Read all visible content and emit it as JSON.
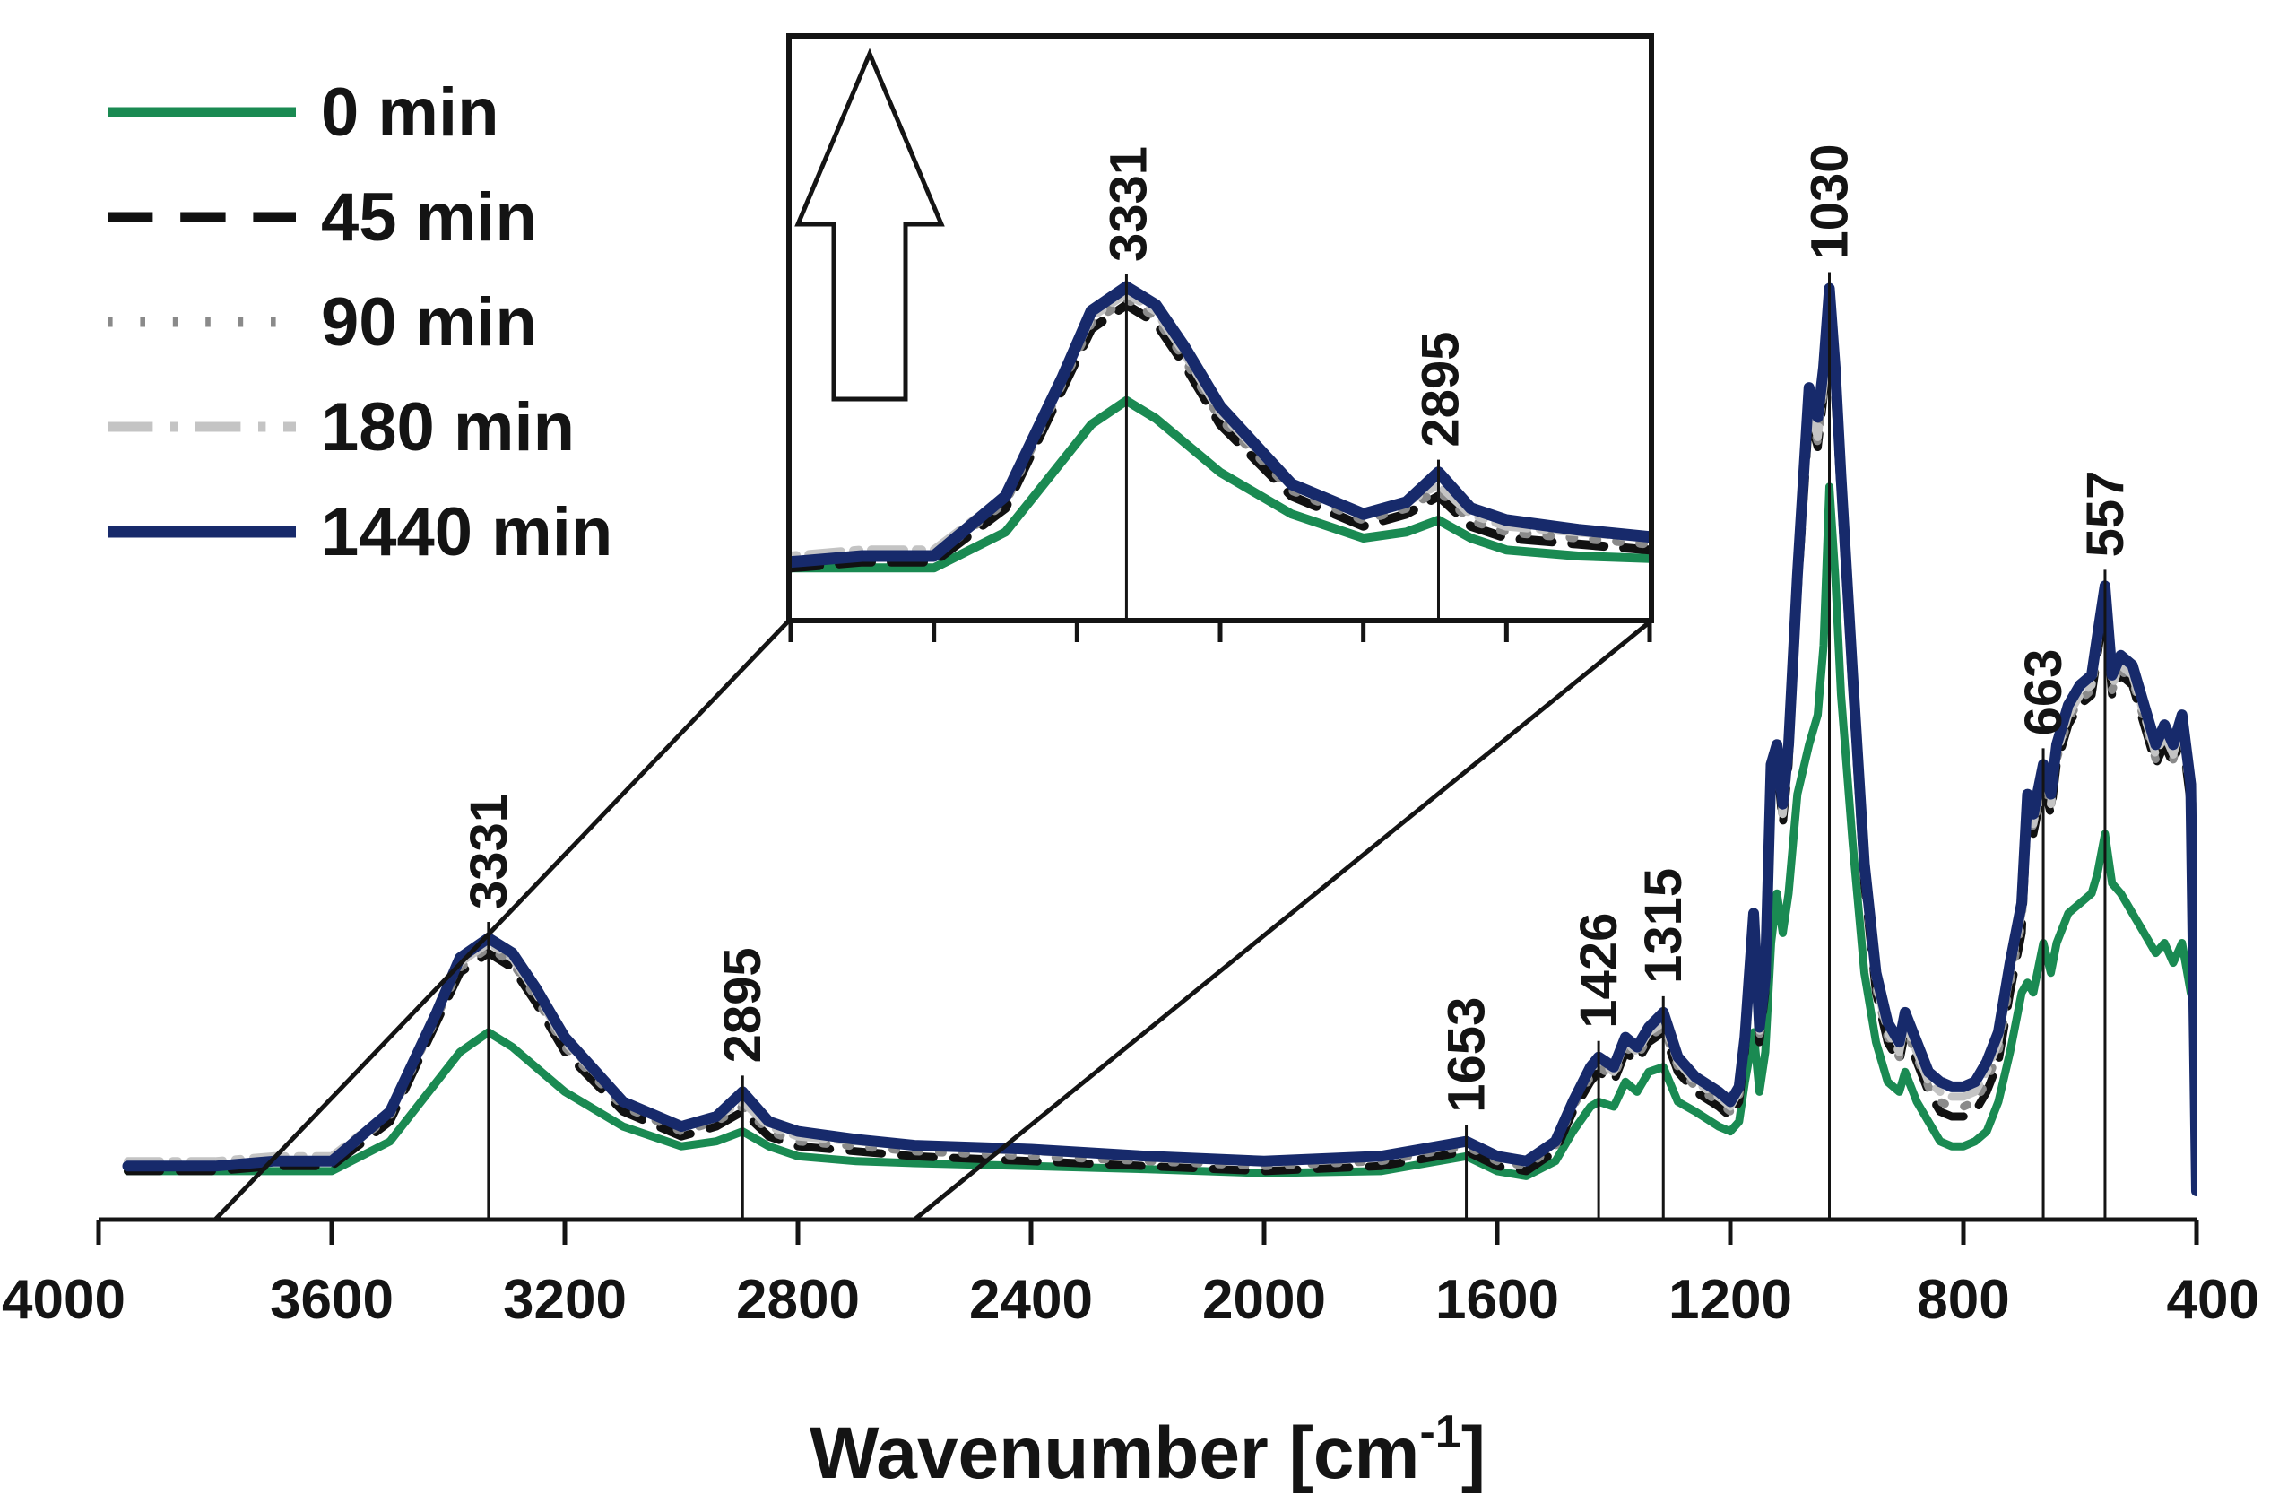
{
  "chart_data": {
    "type": "line",
    "title": "",
    "xlabel": "Wavenumber [cm",
    "xlabel_superscript": "-1",
    "xlabel_suffix": "]",
    "ylabel": "",
    "xlim": [
      4000,
      400
    ],
    "x_reversed": true,
    "y_axis_shown": false,
    "ylim": [
      0,
      1
    ],
    "xticks": [
      4000,
      3600,
      3200,
      2800,
      2400,
      2000,
      1600,
      1200,
      800,
      400
    ],
    "xtick_labels": [
      "4000",
      "3600",
      "3200",
      "2800",
      "2400",
      "2000",
      "1600",
      "1200",
      "800",
      "400"
    ],
    "grid": false,
    "legend_position": "top-left",
    "series": [
      {
        "name": "0 min",
        "label": "0 min",
        "color": "#1a8a52",
        "dash": "solid",
        "x": [
          3950,
          3800,
          3700,
          3600,
          3500,
          3420,
          3380,
          3331,
          3290,
          3250,
          3200,
          3100,
          3000,
          2940,
          2895,
          2850,
          2800,
          2700,
          2600,
          2400,
          2200,
          2000,
          1800,
          1653,
          1600,
          1550,
          1500,
          1470,
          1440,
          1426,
          1400,
          1380,
          1360,
          1340,
          1315,
          1290,
          1260,
          1220,
          1200,
          1185,
          1175,
          1160,
          1150,
          1140,
          1130,
          1120,
          1110,
          1100,
          1085,
          1065,
          1050,
          1040,
          1030,
          1020,
          1010,
          990,
          970,
          950,
          930,
          910,
          900,
          880,
          860,
          840,
          820,
          800,
          780,
          760,
          740,
          720,
          700,
          690,
          680,
          663,
          650,
          640,
          620,
          600,
          580,
          570,
          557,
          545,
          530,
          510,
          490,
          470,
          455,
          440,
          425,
          410,
          400
        ],
        "y": [
          0.02,
          0.02,
          0.02,
          0.02,
          0.05,
          0.11,
          0.14,
          0.16,
          0.145,
          0.125,
          0.1,
          0.065,
          0.045,
          0.05,
          0.06,
          0.045,
          0.035,
          0.03,
          0.028,
          0.025,
          0.022,
          0.018,
          0.02,
          0.035,
          0.02,
          0.015,
          0.03,
          0.06,
          0.085,
          0.09,
          0.085,
          0.11,
          0.1,
          0.12,
          0.125,
          0.09,
          0.08,
          0.065,
          0.06,
          0.07,
          0.11,
          0.16,
          0.1,
          0.14,
          0.25,
          0.3,
          0.26,
          0.3,
          0.4,
          0.45,
          0.48,
          0.55,
          0.71,
          0.62,
          0.5,
          0.35,
          0.22,
          0.15,
          0.11,
          0.1,
          0.12,
          0.09,
          0.07,
          0.05,
          0.045,
          0.045,
          0.05,
          0.06,
          0.09,
          0.14,
          0.2,
          0.21,
          0.2,
          0.25,
          0.22,
          0.25,
          0.28,
          0.29,
          0.3,
          0.32,
          0.36,
          0.31,
          0.3,
          0.28,
          0.26,
          0.24,
          0.25,
          0.23,
          0.25,
          0.2,
          0.18
        ]
      },
      {
        "name": "45 min",
        "label": "45 min",
        "color": "#111111",
        "dash": "dashed",
        "x": [
          3950,
          3800,
          3700,
          3600,
          3500,
          3420,
          3380,
          3331,
          3290,
          3250,
          3200,
          3100,
          3000,
          2940,
          2895,
          2850,
          2800,
          2700,
          2600,
          2400,
          2200,
          2000,
          1800,
          1653,
          1600,
          1550,
          1500,
          1470,
          1440,
          1426,
          1400,
          1380,
          1360,
          1340,
          1315,
          1290,
          1260,
          1220,
          1200,
          1185,
          1175,
          1160,
          1150,
          1140,
          1130,
          1120,
          1110,
          1100,
          1085,
          1065,
          1050,
          1040,
          1030,
          1020,
          1010,
          990,
          970,
          950,
          930,
          910,
          900,
          880,
          860,
          840,
          820,
          800,
          780,
          760,
          740,
          720,
          700,
          690,
          680,
          663,
          650,
          640,
          620,
          600,
          580,
          570,
          557,
          545,
          530,
          510,
          490,
          470,
          455,
          440,
          425,
          410,
          400
        ],
        "y": [
          0.02,
          0.02,
          0.025,
          0.025,
          0.07,
          0.17,
          0.22,
          0.24,
          0.225,
          0.19,
          0.14,
          0.08,
          0.055,
          0.065,
          0.08,
          0.055,
          0.045,
          0.04,
          0.035,
          0.03,
          0.025,
          0.02,
          0.025,
          0.04,
          0.025,
          0.02,
          0.04,
          0.08,
          0.11,
          0.12,
          0.11,
          0.14,
          0.13,
          0.15,
          0.16,
          0.12,
          0.1,
          0.085,
          0.075,
          0.09,
          0.14,
          0.26,
          0.15,
          0.2,
          0.41,
          0.43,
          0.37,
          0.43,
          0.6,
          0.78,
          0.75,
          0.8,
          0.87,
          0.8,
          0.7,
          0.5,
          0.31,
          0.2,
          0.15,
          0.13,
          0.16,
          0.13,
          0.1,
          0.08,
          0.075,
          0.075,
          0.08,
          0.1,
          0.13,
          0.2,
          0.26,
          0.38,
          0.36,
          0.41,
          0.38,
          0.43,
          0.47,
          0.49,
          0.5,
          0.54,
          0.59,
          0.5,
          0.52,
          0.51,
          0.47,
          0.43,
          0.45,
          0.43,
          0.46,
          0.39,
          0.36
        ]
      },
      {
        "name": "90 min",
        "label": "90 min",
        "color": "#8a8a8a",
        "dash": "dotted",
        "x": [
          3950,
          3800,
          3700,
          3600,
          3500,
          3420,
          3380,
          3331,
          3290,
          3250,
          3200,
          3100,
          3000,
          2940,
          2895,
          2850,
          2800,
          2700,
          2600,
          2400,
          2200,
          2000,
          1800,
          1653,
          1600,
          1550,
          1500,
          1470,
          1440,
          1426,
          1400,
          1380,
          1360,
          1340,
          1315,
          1290,
          1260,
          1220,
          1200,
          1185,
          1175,
          1160,
          1150,
          1140,
          1130,
          1120,
          1110,
          1100,
          1085,
          1065,
          1050,
          1040,
          1030,
          1020,
          1010,
          990,
          970,
          950,
          930,
          910,
          900,
          880,
          860,
          840,
          820,
          800,
          780,
          760,
          740,
          720,
          700,
          690,
          680,
          663,
          650,
          640,
          620,
          600,
          580,
          570,
          557,
          545,
          530,
          510,
          490,
          470,
          455,
          440,
          425,
          410,
          400
        ],
        "y": [
          0.025,
          0.025,
          0.03,
          0.03,
          0.075,
          0.175,
          0.225,
          0.245,
          0.23,
          0.195,
          0.145,
          0.085,
          0.06,
          0.07,
          0.085,
          0.06,
          0.05,
          0.045,
          0.04,
          0.035,
          0.03,
          0.025,
          0.03,
          0.045,
          0.03,
          0.025,
          0.045,
          0.085,
          0.115,
          0.125,
          0.115,
          0.145,
          0.135,
          0.155,
          0.165,
          0.125,
          0.105,
          0.09,
          0.08,
          0.095,
          0.145,
          0.265,
          0.155,
          0.205,
          0.415,
          0.435,
          0.375,
          0.435,
          0.605,
          0.785,
          0.755,
          0.805,
          0.875,
          0.805,
          0.705,
          0.505,
          0.315,
          0.205,
          0.155,
          0.135,
          0.165,
          0.135,
          0.105,
          0.09,
          0.085,
          0.085,
          0.09,
          0.11,
          0.14,
          0.21,
          0.27,
          0.385,
          0.365,
          0.415,
          0.385,
          0.435,
          0.475,
          0.495,
          0.505,
          0.545,
          0.595,
          0.505,
          0.525,
          0.515,
          0.475,
          0.435,
          0.455,
          0.435,
          0.465,
          0.395,
          0.365
        ]
      },
      {
        "name": "180 min",
        "label": "180 min",
        "color": "#c4c4c4",
        "dash": "dash-dot",
        "x": [
          3950,
          3800,
          3700,
          3600,
          3500,
          3420,
          3380,
          3331,
          3290,
          3250,
          3200,
          3100,
          3000,
          2940,
          2895,
          2850,
          2800,
          2700,
          2600,
          2400,
          2200,
          2000,
          1800,
          1653,
          1600,
          1550,
          1500,
          1470,
          1440,
          1426,
          1400,
          1380,
          1360,
          1340,
          1315,
          1290,
          1260,
          1220,
          1200,
          1185,
          1175,
          1160,
          1150,
          1140,
          1130,
          1120,
          1110,
          1100,
          1085,
          1065,
          1050,
          1040,
          1030,
          1020,
          1010,
          990,
          970,
          950,
          930,
          910,
          900,
          880,
          860,
          840,
          820,
          800,
          780,
          760,
          740,
          720,
          700,
          690,
          680,
          663,
          650,
          640,
          620,
          600,
          580,
          570,
          557,
          545,
          530,
          510,
          490,
          470,
          455,
          440,
          425,
          410,
          400
        ],
        "y": [
          0.03,
          0.03,
          0.035,
          0.035,
          0.08,
          0.18,
          0.23,
          0.25,
          0.235,
          0.2,
          0.15,
          0.09,
          0.065,
          0.075,
          0.09,
          0.065,
          0.055,
          0.05,
          0.045,
          0.04,
          0.035,
          0.03,
          0.035,
          0.05,
          0.035,
          0.03,
          0.05,
          0.09,
          0.12,
          0.13,
          0.12,
          0.15,
          0.14,
          0.16,
          0.17,
          0.13,
          0.11,
          0.095,
          0.085,
          0.1,
          0.15,
          0.27,
          0.16,
          0.21,
          0.42,
          0.44,
          0.38,
          0.44,
          0.61,
          0.79,
          0.76,
          0.81,
          0.88,
          0.81,
          0.71,
          0.51,
          0.32,
          0.21,
          0.16,
          0.14,
          0.17,
          0.14,
          0.11,
          0.1,
          0.095,
          0.095,
          0.1,
          0.12,
          0.15,
          0.22,
          0.28,
          0.39,
          0.37,
          0.42,
          0.39,
          0.44,
          0.48,
          0.5,
          0.51,
          0.55,
          0.6,
          0.51,
          0.53,
          0.52,
          0.48,
          0.44,
          0.46,
          0.44,
          0.47,
          0.4,
          0.37
        ]
      },
      {
        "name": "1440 min",
        "label": "1440 min",
        "color": "#172a6b",
        "dash": "solid",
        "x": [
          3950,
          3800,
          3700,
          3600,
          3500,
          3420,
          3380,
          3331,
          3290,
          3250,
          3200,
          3100,
          3000,
          2940,
          2895,
          2850,
          2800,
          2700,
          2600,
          2400,
          2200,
          2000,
          1800,
          1653,
          1600,
          1550,
          1500,
          1470,
          1440,
          1426,
          1400,
          1380,
          1360,
          1340,
          1315,
          1290,
          1260,
          1220,
          1200,
          1185,
          1175,
          1160,
          1150,
          1140,
          1130,
          1120,
          1110,
          1100,
          1085,
          1065,
          1050,
          1040,
          1030,
          1020,
          1010,
          990,
          970,
          950,
          930,
          910,
          900,
          880,
          860,
          840,
          820,
          800,
          780,
          760,
          740,
          720,
          700,
          690,
          680,
          663,
          650,
          640,
          620,
          600,
          580,
          570,
          557,
          545,
          530,
          510,
          490,
          470,
          455,
          440,
          425,
          410,
          400
        ],
        "y": [
          0.025,
          0.025,
          0.03,
          0.03,
          0.08,
          0.18,
          0.235,
          0.255,
          0.24,
          0.205,
          0.155,
          0.09,
          0.065,
          0.075,
          0.1,
          0.07,
          0.06,
          0.052,
          0.046,
          0.042,
          0.035,
          0.03,
          0.035,
          0.05,
          0.035,
          0.03,
          0.05,
          0.09,
          0.125,
          0.135,
          0.125,
          0.155,
          0.145,
          0.165,
          0.18,
          0.135,
          0.115,
          0.1,
          0.09,
          0.105,
          0.155,
          0.28,
          0.165,
          0.215,
          0.43,
          0.45,
          0.39,
          0.45,
          0.62,
          0.81,
          0.78,
          0.83,
          0.91,
          0.83,
          0.72,
          0.52,
          0.33,
          0.22,
          0.17,
          0.15,
          0.18,
          0.15,
          0.12,
          0.11,
          0.105,
          0.105,
          0.11,
          0.13,
          0.16,
          0.23,
          0.29,
          0.4,
          0.38,
          0.43,
          0.4,
          0.45,
          0.49,
          0.51,
          0.52,
          0.56,
          0.61,
          0.52,
          0.54,
          0.53,
          0.49,
          0.45,
          0.47,
          0.45,
          0.48,
          0.41,
          0.0
        ]
      }
    ],
    "peak_annotations": [
      {
        "x": 3331,
        "label": "3331"
      },
      {
        "x": 2895,
        "label": "2895"
      },
      {
        "x": 1653,
        "label": "1653"
      },
      {
        "x": 1426,
        "label": "1426"
      },
      {
        "x": 1315,
        "label": "1315"
      },
      {
        "x": 1030,
        "label": "1030"
      },
      {
        "x": 663,
        "label": "663"
      },
      {
        "x": 557,
        "label": "557"
      }
    ],
    "inset": {
      "xlim": [
        3800,
        2600
      ],
      "ylim": [
        0,
        0.3
      ],
      "xticks": [
        3800,
        3600,
        3400,
        3200,
        3000,
        2800,
        2600
      ],
      "peak_annotations": [
        {
          "x": 3331,
          "label": "3331"
        },
        {
          "x": 2895,
          "label": "2895"
        }
      ],
      "arrow_direction": "up"
    }
  }
}
